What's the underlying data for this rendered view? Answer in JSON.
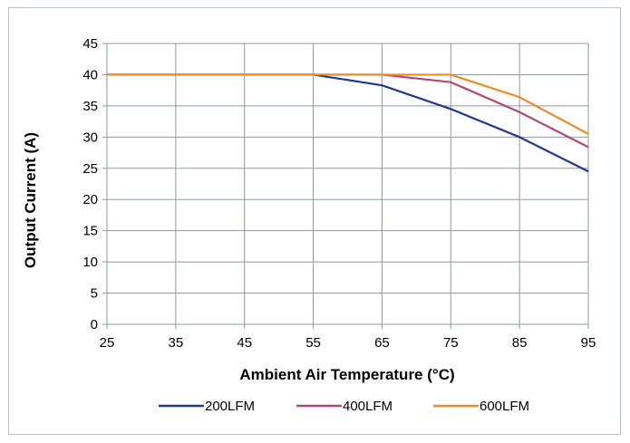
{
  "chart_data": {
    "type": "line",
    "title": "",
    "xlabel": "Ambient Air Temperature (°C)",
    "ylabel": "Output Current (A)",
    "x": [
      25,
      35,
      45,
      55,
      65,
      75,
      85,
      95
    ],
    "xticks": [
      "25",
      "35",
      "45",
      "55",
      "65",
      "75",
      "85",
      "95"
    ],
    "yticks": [
      "0",
      "5",
      "10",
      "15",
      "20",
      "25",
      "30",
      "35",
      "40",
      "45"
    ],
    "xlim": [
      25,
      95
    ],
    "ylim": [
      0,
      45
    ],
    "grid": true,
    "legend_position": "bottom",
    "series": [
      {
        "name": "200LFM",
        "color": "#1f3a8f",
        "values": [
          40,
          40,
          40,
          40,
          38.3,
          34.5,
          30,
          24.5
        ]
      },
      {
        "name": "400LFM",
        "color": "#b1487a",
        "values": [
          40,
          40,
          40,
          40,
          40,
          38.8,
          34,
          28.4
        ]
      },
      {
        "name": "600LFM",
        "color": "#f08a24",
        "values": [
          40,
          40,
          40,
          40,
          40,
          40,
          36.4,
          30.5
        ]
      }
    ]
  }
}
